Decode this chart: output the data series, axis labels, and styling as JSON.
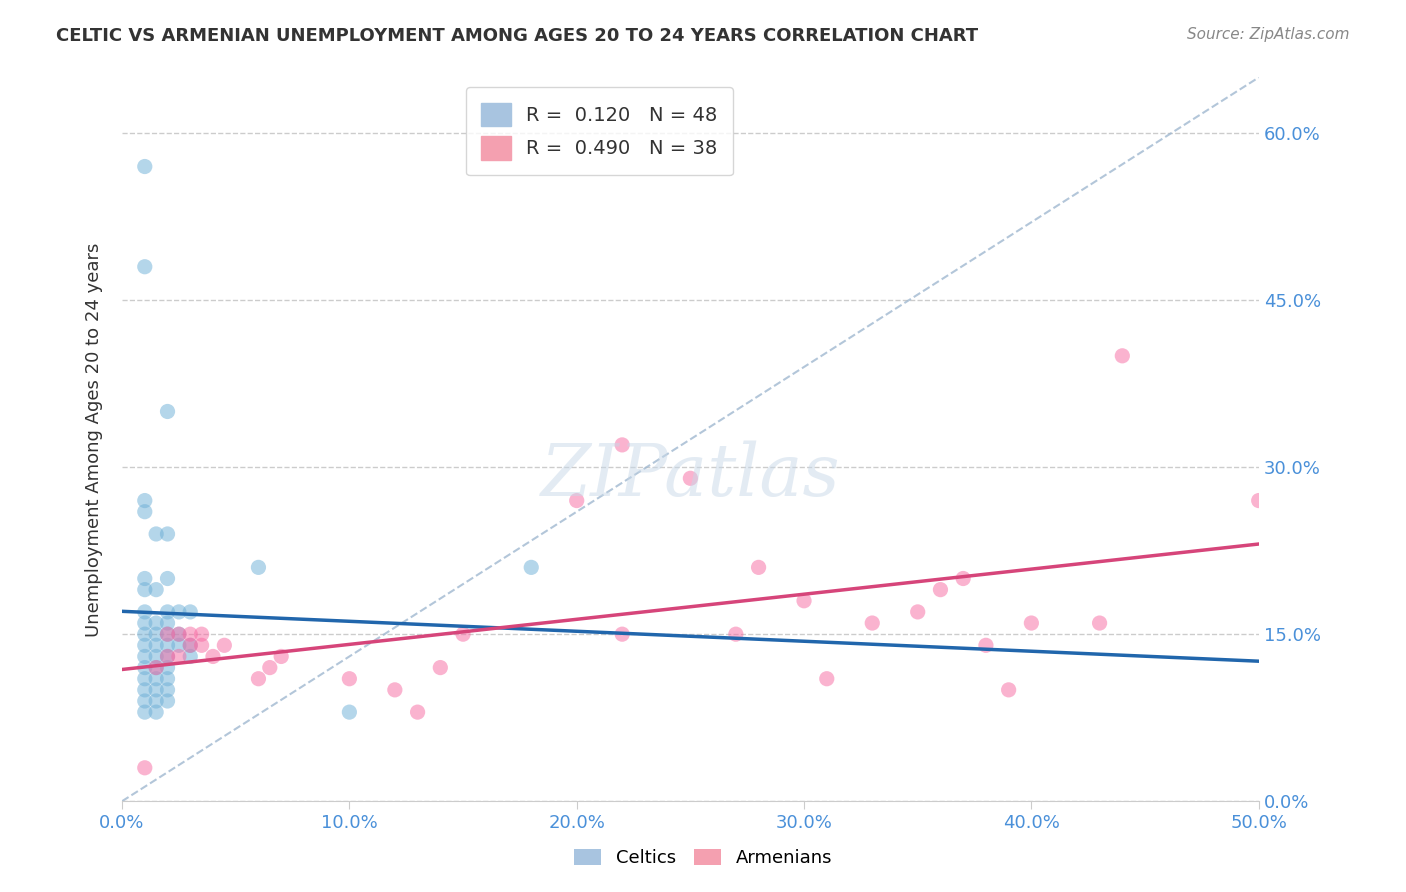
{
  "title": "CELTIC VS ARMENIAN UNEMPLOYMENT AMONG AGES 20 TO 24 YEARS CORRELATION CHART",
  "source": "Source: ZipAtlas.com",
  "xlabel": "",
  "ylabel": "Unemployment Among Ages 20 to 24 years",
  "xlim": [
    0.0,
    0.5
  ],
  "ylim": [
    0.0,
    0.65
  ],
  "xticks": [
    0.0,
    0.1,
    0.2,
    0.3,
    0.4,
    0.5
  ],
  "xtick_labels": [
    "0.0%",
    "10.0%",
    "20.0%",
    "30.0%",
    "40.0%",
    "50.0%"
  ],
  "ytick_labels_right": [
    "0.0%",
    "15.0%",
    "30.0%",
    "45.0%",
    "60.0%"
  ],
  "yticks_right": [
    0.0,
    0.15,
    0.3,
    0.45,
    0.6
  ],
  "legend_entries": [
    {
      "label": "R =  0.120   N = 48",
      "color": "#a8c4e0"
    },
    {
      "label": "R =  0.490   N = 38",
      "color": "#f4a0b0"
    }
  ],
  "celtics_R": 0.12,
  "celtics_N": 48,
  "armenians_R": 0.49,
  "armenians_N": 38,
  "celtics_color": "#6baed6",
  "armenians_color": "#f768a1",
  "celtics_line_color": "#2166ac",
  "armenians_line_color": "#d6457a",
  "dashed_line_color": "#a0b8d0",
  "watermark": "ZIPatlas",
  "celtics_scatter": [
    [
      0.01,
      0.57
    ],
    [
      0.01,
      0.48
    ],
    [
      0.02,
      0.35
    ],
    [
      0.01,
      0.27
    ],
    [
      0.01,
      0.26
    ],
    [
      0.015,
      0.24
    ],
    [
      0.02,
      0.24
    ],
    [
      0.01,
      0.2
    ],
    [
      0.02,
      0.2
    ],
    [
      0.01,
      0.19
    ],
    [
      0.015,
      0.19
    ],
    [
      0.01,
      0.17
    ],
    [
      0.02,
      0.17
    ],
    [
      0.025,
      0.17
    ],
    [
      0.03,
      0.17
    ],
    [
      0.01,
      0.16
    ],
    [
      0.015,
      0.16
    ],
    [
      0.02,
      0.16
    ],
    [
      0.01,
      0.15
    ],
    [
      0.015,
      0.15
    ],
    [
      0.02,
      0.15
    ],
    [
      0.025,
      0.15
    ],
    [
      0.01,
      0.14
    ],
    [
      0.015,
      0.14
    ],
    [
      0.02,
      0.14
    ],
    [
      0.025,
      0.14
    ],
    [
      0.03,
      0.14
    ],
    [
      0.01,
      0.13
    ],
    [
      0.015,
      0.13
    ],
    [
      0.02,
      0.13
    ],
    [
      0.03,
      0.13
    ],
    [
      0.01,
      0.12
    ],
    [
      0.015,
      0.12
    ],
    [
      0.02,
      0.12
    ],
    [
      0.01,
      0.11
    ],
    [
      0.015,
      0.11
    ],
    [
      0.02,
      0.11
    ],
    [
      0.01,
      0.1
    ],
    [
      0.015,
      0.1
    ],
    [
      0.02,
      0.1
    ],
    [
      0.01,
      0.09
    ],
    [
      0.015,
      0.09
    ],
    [
      0.02,
      0.09
    ],
    [
      0.01,
      0.08
    ],
    [
      0.015,
      0.08
    ],
    [
      0.06,
      0.21
    ],
    [
      0.1,
      0.08
    ],
    [
      0.18,
      0.21
    ]
  ],
  "armenians_scatter": [
    [
      0.01,
      0.03
    ],
    [
      0.015,
      0.12
    ],
    [
      0.02,
      0.13
    ],
    [
      0.025,
      0.13
    ],
    [
      0.03,
      0.14
    ],
    [
      0.035,
      0.14
    ],
    [
      0.02,
      0.15
    ],
    [
      0.025,
      0.15
    ],
    [
      0.03,
      0.15
    ],
    [
      0.035,
      0.15
    ],
    [
      0.04,
      0.13
    ],
    [
      0.045,
      0.14
    ],
    [
      0.06,
      0.11
    ],
    [
      0.065,
      0.12
    ],
    [
      0.07,
      0.13
    ],
    [
      0.1,
      0.11
    ],
    [
      0.12,
      0.1
    ],
    [
      0.13,
      0.08
    ],
    [
      0.14,
      0.12
    ],
    [
      0.15,
      0.15
    ],
    [
      0.2,
      0.27
    ],
    [
      0.22,
      0.32
    ],
    [
      0.22,
      0.15
    ],
    [
      0.25,
      0.29
    ],
    [
      0.27,
      0.15
    ],
    [
      0.28,
      0.21
    ],
    [
      0.3,
      0.18
    ],
    [
      0.31,
      0.11
    ],
    [
      0.33,
      0.16
    ],
    [
      0.35,
      0.17
    ],
    [
      0.36,
      0.19
    ],
    [
      0.37,
      0.2
    ],
    [
      0.38,
      0.14
    ],
    [
      0.39,
      0.1
    ],
    [
      0.4,
      0.16
    ],
    [
      0.43,
      0.16
    ],
    [
      0.44,
      0.4
    ],
    [
      0.5,
      0.27
    ]
  ]
}
